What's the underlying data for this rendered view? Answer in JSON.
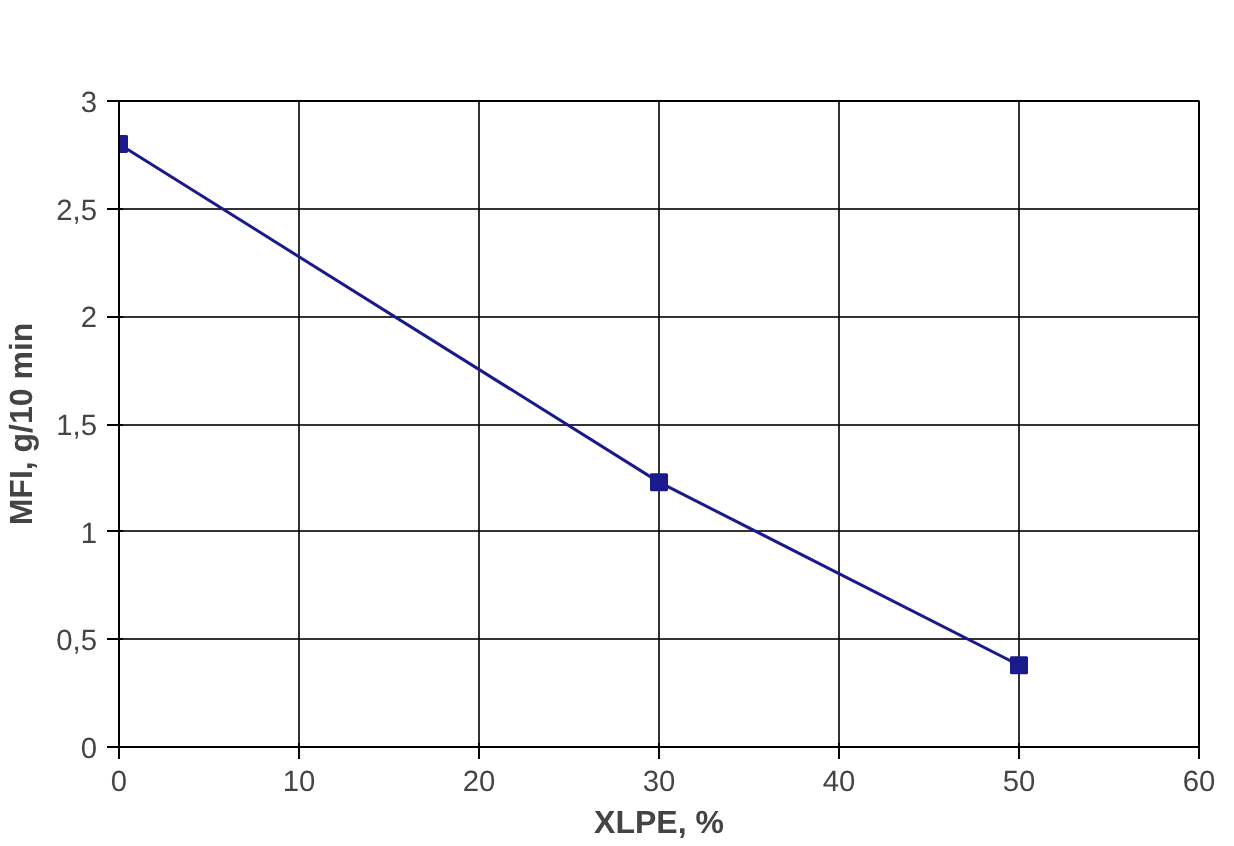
{
  "chart_data": {
    "type": "line",
    "xlabel": "XLPE, %",
    "ylabel": "MFI, g/10 min",
    "x": [
      0,
      30,
      50
    ],
    "series": [
      {
        "color": "#1a1a8c",
        "values": [
          2.8,
          1.23,
          0.38
        ]
      }
    ],
    "xlim": [
      0,
      60
    ],
    "xticks": [
      0,
      10,
      20,
      30,
      40,
      50,
      60
    ],
    "ylim": [
      0,
      3
    ],
    "yticks": [
      0,
      {
        "value": 0.5,
        "label": "0,5"
      },
      1,
      {
        "value": 1.5,
        "label": "1,5"
      },
      2,
      {
        "value": 2.5,
        "label": "2,5"
      },
      3
    ],
    "grid": true,
    "marker": "square",
    "line_style": "solid"
  }
}
